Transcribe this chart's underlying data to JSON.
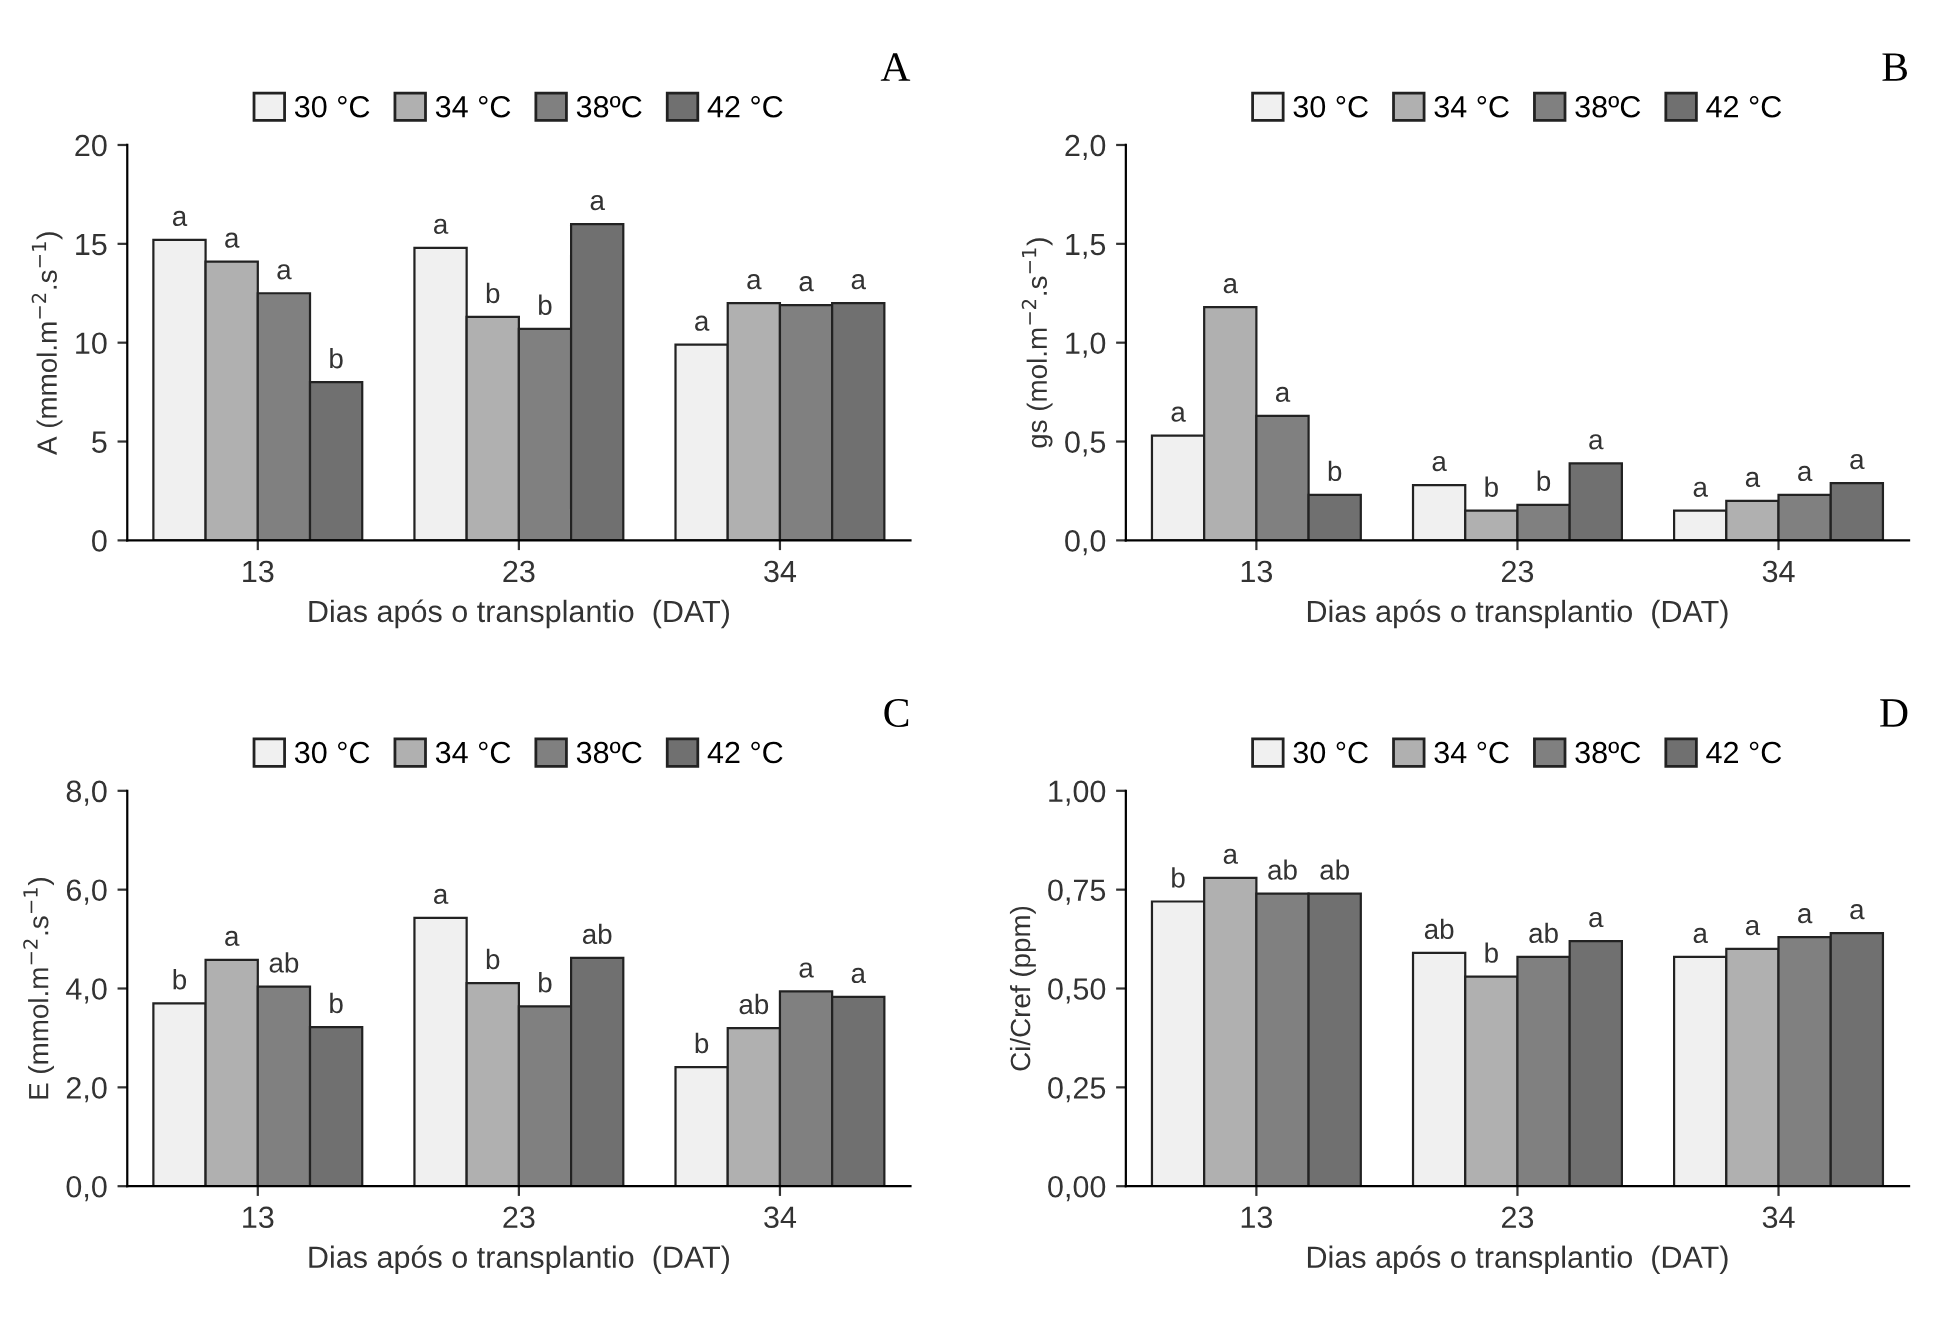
{
  "chart_data": [
    {
      "type": "bar",
      "title": "A",
      "xlabel": "Dias após o transplantio  (DAT)",
      "ylabel": "A (mmol.m$^{−2}$.s$^{−1}$)",
      "categories": [
        "13",
        "23",
        "34"
      ],
      "ylim": [
        0,
        20
      ],
      "yticks": [
        0,
        5,
        10,
        15,
        20
      ],
      "legend": "top",
      "grid": false,
      "series": [
        {
          "name": "30 °C",
          "color": "#f0f0f0",
          "values": [
            15.2,
            14.8,
            9.9
          ],
          "value_labels": [
            "a",
            "a",
            "a"
          ]
        },
        {
          "name": "34 °C",
          "color": "#b0b0b0",
          "values": [
            14.1,
            11.3,
            12.0
          ],
          "value_labels": [
            "a",
            "b",
            "a"
          ]
        },
        {
          "name": "38ºC",
          "color": "#808080",
          "values": [
            12.5,
            10.7,
            11.9
          ],
          "value_labels": [
            "a",
            "b",
            "a"
          ]
        },
        {
          "name": "42 °C",
          "color": "#707070",
          "values": [
            8.0,
            16.0,
            12.0
          ],
          "value_labels": [
            "b",
            "a",
            "a"
          ]
        }
      ]
    },
    {
      "type": "bar",
      "title": "B",
      "xlabel": "Dias após o transplantio  (DAT)",
      "ylabel": "gs (mol.m$^{−2}$.s$^{−1}$)",
      "categories": [
        "13",
        "23",
        "34"
      ],
      "ylim": [
        0,
        2.0
      ],
      "yticks": [
        {
          "value": 0,
          "label": "0,0"
        },
        {
          "value": 0.5,
          "label": "0,5"
        },
        {
          "value": 1.0,
          "label": "1,0"
        },
        {
          "value": 1.5,
          "label": "1,5"
        },
        {
          "value": 2.0,
          "label": "2,0"
        }
      ],
      "legend": "top",
      "grid": false,
      "series": [
        {
          "name": "30 °C",
          "color": "#f0f0f0",
          "values": [
            0.53,
            0.28,
            0.15
          ],
          "value_labels": [
            "a",
            "a",
            "a"
          ]
        },
        {
          "name": "34 °C",
          "color": "#b0b0b0",
          "values": [
            1.18,
            0.15,
            0.2
          ],
          "value_labels": [
            "a",
            "b",
            "a"
          ]
        },
        {
          "name": "38ºC",
          "color": "#808080",
          "values": [
            0.63,
            0.18,
            0.23
          ],
          "value_labels": [
            "a",
            "b",
            "a"
          ]
        },
        {
          "name": "42 °C",
          "color": "#707070",
          "values": [
            0.23,
            0.39,
            0.29
          ],
          "value_labels": [
            "b",
            "a",
            "a"
          ]
        }
      ]
    },
    {
      "type": "bar",
      "title": "C",
      "xlabel": "Dias após o transplantio  (DAT)",
      "ylabel": "E (mmol.m$^{−2}$.s$^{−1}$)",
      "categories": [
        "13",
        "23",
        "34"
      ],
      "ylim": [
        0,
        8.0
      ],
      "yticks": [
        {
          "value": 0,
          "label": "0,0"
        },
        {
          "value": 2.0,
          "label": "2,0"
        },
        {
          "value": 4.0,
          "label": "4,0"
        },
        {
          "value": 6.0,
          "label": "6,0"
        },
        {
          "value": 8.0,
          "label": "8,0"
        }
      ],
      "legend": "top",
      "grid": false,
      "series": [
        {
          "name": "30 °C",
          "color": "#f0f0f0",
          "values": [
            3.7,
            5.43,
            2.41
          ],
          "value_labels": [
            "b",
            "a",
            "b"
          ]
        },
        {
          "name": "34 °C",
          "color": "#b0b0b0",
          "values": [
            4.58,
            4.11,
            3.2
          ],
          "value_labels": [
            "a",
            "b",
            "ab"
          ]
        },
        {
          "name": "38ºC",
          "color": "#808080",
          "values": [
            4.04,
            3.64,
            3.94
          ],
          "value_labels": [
            "ab",
            "b",
            "a"
          ]
        },
        {
          "name": "42 °C",
          "color": "#707070",
          "values": [
            3.22,
            4.62,
            3.83
          ],
          "value_labels": [
            "b",
            "ab",
            "a"
          ]
        }
      ]
    },
    {
      "type": "bar",
      "title": "D",
      "xlabel": "Dias após o transplantio  (DAT)",
      "ylabel": "Ci/Cref (ppm)",
      "categories": [
        "13",
        "23",
        "34"
      ],
      "ylim": [
        0,
        1.0
      ],
      "yticks": [
        {
          "value": 0,
          "label": "0,00"
        },
        {
          "value": 0.25,
          "label": "0,25"
        },
        {
          "value": 0.5,
          "label": "0,50"
        },
        {
          "value": 0.75,
          "label": "0,75"
        },
        {
          "value": 1.0,
          "label": "1,00"
        }
      ],
      "legend": "top",
      "grid": false,
      "series": [
        {
          "name": "30 °C",
          "color": "#f0f0f0",
          "values": [
            0.72,
            0.59,
            0.58
          ],
          "value_labels": [
            "b",
            "ab",
            "a"
          ]
        },
        {
          "name": "34 °C",
          "color": "#b0b0b0",
          "values": [
            0.78,
            0.53,
            0.6
          ],
          "value_labels": [
            "a",
            "b",
            "a"
          ]
        },
        {
          "name": "38ºC",
          "color": "#808080",
          "values": [
            0.74,
            0.58,
            0.63
          ],
          "value_labels": [
            "ab",
            "ab",
            "a"
          ]
        },
        {
          "name": "42 °C",
          "color": "#707070",
          "values": [
            0.74,
            0.62,
            0.64
          ],
          "value_labels": [
            "ab",
            "a",
            "a"
          ]
        }
      ]
    }
  ]
}
